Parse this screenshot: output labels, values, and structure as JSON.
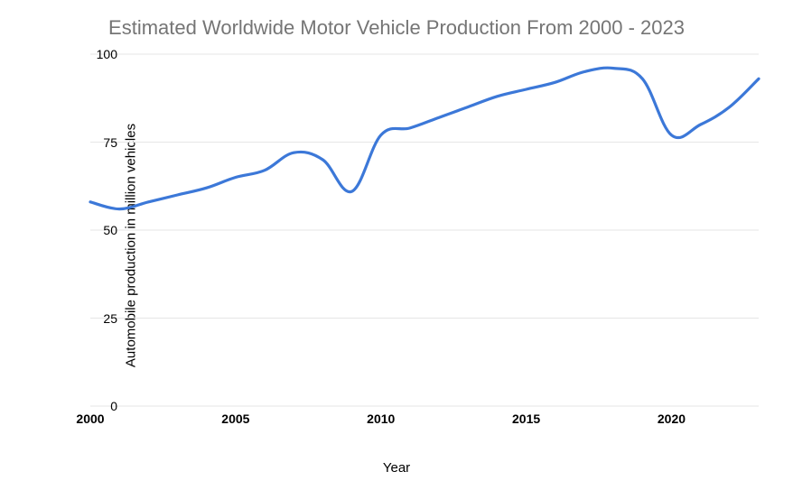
{
  "chart": {
    "type": "line",
    "title": "Estimated Worldwide Motor Vehicle Production From 2000 - 2023",
    "title_fontsize": 22,
    "title_color": "#757575",
    "ylabel": "Automobile production in million vehicles",
    "xlabel": "Year",
    "axis_label_fontsize": 15,
    "axis_label_color": "#000000",
    "tick_fontsize": 14,
    "tick_color": "#000000",
    "background_color": "#ffffff",
    "grid_color": "#e6e6e6",
    "line_color": "#3c78d8",
    "line_width": 3.2,
    "xlim": [
      2000,
      2023
    ],
    "ylim": [
      0,
      100
    ],
    "yticks": [
      0,
      25,
      50,
      75,
      100
    ],
    "xticks": [
      2000,
      2005,
      2010,
      2015,
      2020
    ],
    "x": [
      2000,
      2001,
      2002,
      2003,
      2004,
      2005,
      2006,
      2007,
      2008,
      2009,
      2010,
      2011,
      2012,
      2013,
      2014,
      2015,
      2016,
      2017,
      2018,
      2019,
      2020,
      2021,
      2022,
      2023
    ],
    "y": [
      58,
      56,
      58,
      60,
      62,
      65,
      67,
      72,
      70,
      61,
      77,
      79,
      82,
      85,
      88,
      90,
      92,
      95,
      96,
      93,
      77,
      80,
      85,
      93
    ],
    "smooth": true
  }
}
